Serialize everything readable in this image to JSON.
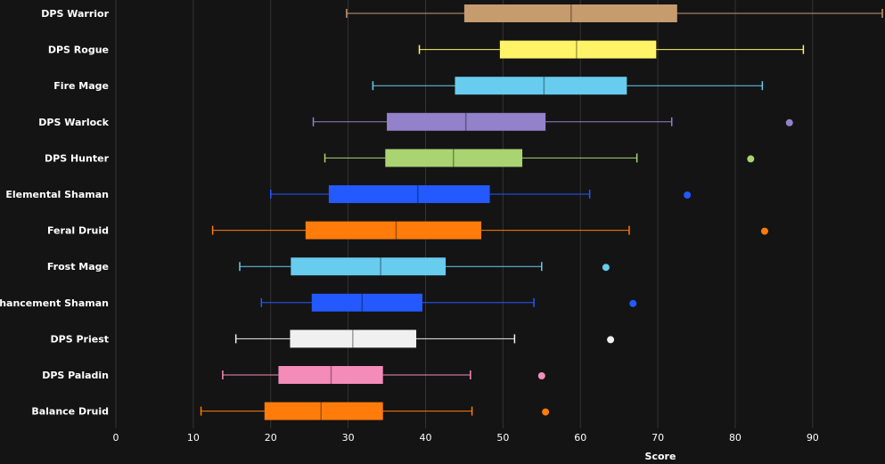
{
  "chart_data": {
    "type": "boxplot",
    "orientation": "horizontal",
    "xlabel": "Score",
    "xlim": [
      0,
      99
    ],
    "xticks": [
      0,
      10,
      20,
      30,
      40,
      50,
      60,
      70,
      80,
      90
    ],
    "grid": true,
    "background": "#141414",
    "grid_color": "#333333",
    "series": [
      {
        "category": "DPS Warrior",
        "color": "#C69B6D",
        "whisker_low": 29.8,
        "q1": 45,
        "median": 58.8,
        "q3": 72.5,
        "whisker_high": 99,
        "outliers": []
      },
      {
        "category": "DPS Rogue",
        "color": "#FFF468",
        "whisker_low": 39.2,
        "q1": 49.6,
        "median": 59.5,
        "q3": 69.8,
        "whisker_high": 88.8,
        "outliers": []
      },
      {
        "category": "Fire Mage",
        "color": "#68CCEF",
        "whisker_low": 33.2,
        "q1": 43.8,
        "median": 55.3,
        "q3": 66,
        "whisker_high": 83.5,
        "outliers": []
      },
      {
        "category": "DPS Warlock",
        "color": "#9382C9",
        "whisker_low": 25.5,
        "q1": 35,
        "median": 45.2,
        "q3": 55.5,
        "whisker_high": 71.8,
        "outliers": [
          87
        ]
      },
      {
        "category": "DPS Hunter",
        "color": "#AAD372",
        "whisker_low": 27,
        "q1": 34.8,
        "median": 43.6,
        "q3": 52.5,
        "whisker_high": 67.3,
        "outliers": [
          82
        ]
      },
      {
        "category": "Elemental Shaman",
        "color": "#2359FF",
        "whisker_low": 20,
        "q1": 27.5,
        "median": 39,
        "q3": 48.3,
        "whisker_high": 61.2,
        "outliers": [
          73.8
        ]
      },
      {
        "category": "Feral Druid",
        "color": "#FF7C0A",
        "whisker_low": 12.5,
        "q1": 24.5,
        "median": 36.2,
        "q3": 47.2,
        "whisker_high": 66.3,
        "outliers": [
          83.8
        ]
      },
      {
        "category": "Frost Mage",
        "color": "#68CCEF",
        "whisker_low": 16,
        "q1": 22.6,
        "median": 34.2,
        "q3": 42.6,
        "whisker_high": 55,
        "outliers": [
          63.3
        ]
      },
      {
        "category": "Enhancement Shaman",
        "color": "#2359FF",
        "whisker_low": 18.8,
        "q1": 25.3,
        "median": 31.8,
        "q3": 39.6,
        "whisker_high": 54,
        "outliers": [
          66.8
        ]
      },
      {
        "category": "DPS Priest",
        "color": "#F0F0F0",
        "whisker_low": 15.5,
        "q1": 22.5,
        "median": 30.6,
        "q3": 38.8,
        "whisker_high": 51.5,
        "outliers": [
          63.9
        ]
      },
      {
        "category": "DPS Paladin",
        "color": "#F48CBA",
        "whisker_low": 13.8,
        "q1": 21,
        "median": 27.8,
        "q3": 34.5,
        "whisker_high": 45.8,
        "outliers": [
          55
        ]
      },
      {
        "category": "Balance Druid",
        "color": "#FF7C0A",
        "whisker_low": 11,
        "q1": 19.2,
        "median": 26.5,
        "q3": 34.5,
        "whisker_high": 46,
        "outliers": [
          55.5
        ]
      }
    ]
  }
}
